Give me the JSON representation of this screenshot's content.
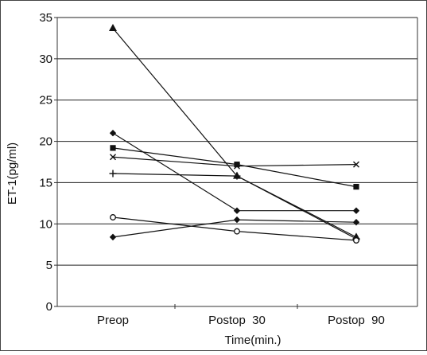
{
  "chart_data": {
    "type": "line",
    "categories": [
      "Preop",
      "Postop  30",
      "Postop  90"
    ],
    "xlabel": "Time(min.)",
    "ylabel": "ET-1(pg/ml)",
    "ylim": [
      0,
      35
    ],
    "yticks": [
      0,
      5,
      10,
      15,
      20,
      25,
      30,
      35
    ],
    "grid": true,
    "legend": "none",
    "series": [
      {
        "marker": "triangle",
        "values": [
          33.7,
          15.8,
          8.4
        ]
      },
      {
        "marker": "diamond",
        "values": [
          21.0,
          11.6,
          11.6
        ]
      },
      {
        "marker": "square",
        "values": [
          19.2,
          17.2,
          14.5
        ]
      },
      {
        "marker": "x",
        "values": [
          18.1,
          17.0,
          17.2
        ]
      },
      {
        "marker": "plus",
        "values": [
          16.1,
          15.8,
          8.2
        ]
      },
      {
        "marker": "circle",
        "values": [
          10.8,
          9.1,
          8.0
        ]
      },
      {
        "marker": "diamond",
        "values": [
          8.4,
          10.5,
          10.2
        ]
      }
    ],
    "colors": {
      "line": "#111111",
      "grid": "#222222",
      "frame": "#333333"
    }
  }
}
